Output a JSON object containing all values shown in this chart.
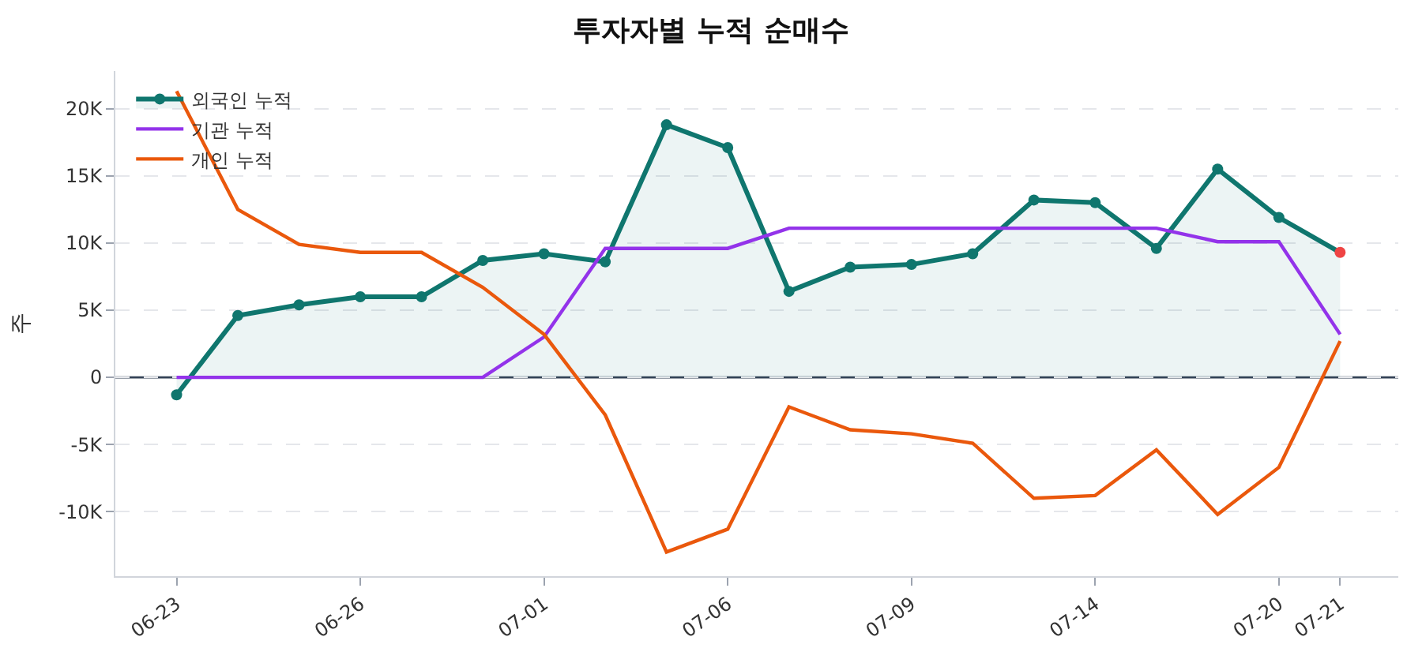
{
  "chart_data": {
    "type": "line",
    "title": "투자자별 누적 순매수",
    "ylabel": "주",
    "categories": [
      "06-23",
      null,
      null,
      "06-26",
      null,
      null,
      "07-01",
      null,
      null,
      "07-06",
      null,
      null,
      "07-09",
      null,
      null,
      "07-14",
      null,
      null,
      "07-20",
      "07-21"
    ],
    "series": [
      {
        "name": "외국인 누적",
        "type": "area",
        "marker": "circle",
        "color": "#0f766e",
        "colors": [
          "#0f766e",
          "#0f766e",
          "#0f766e",
          "#0f766e",
          "#0f766e",
          "#0f766e",
          "#0f766e",
          "#0f766e",
          "#0f766e",
          "#0f766e",
          "#0f766e",
          "#0f766e",
          "#0f766e",
          "#0f766e",
          "#0f766e",
          "#0f766e",
          "#0f766e",
          "#0f766e",
          "#0f766e",
          "#ef4444"
        ],
        "values": [
          -1300,
          4600,
          5400,
          6000,
          6000,
          8700,
          9200,
          8600,
          18800,
          17100,
          6400,
          8200,
          8400,
          9200,
          13200,
          13000,
          9600,
          15500,
          11900,
          9300
        ]
      },
      {
        "name": "기관 누적",
        "color": "#9333ea",
        "values": [
          0,
          0,
          0,
          0,
          0,
          0,
          3000,
          9600,
          9600,
          9600,
          11100,
          11100,
          11100,
          11100,
          11100,
          11100,
          11100,
          10100,
          10100,
          3200
        ]
      },
      {
        "name": "개인 누적",
        "color": "#ea580c",
        "values": [
          21300,
          12500,
          9900,
          9300,
          9300,
          6700,
          3200,
          -2800,
          -13000,
          -11300,
          -2200,
          -3900,
          -4200,
          -4900,
          -9000,
          -8800,
          -5400,
          -10200,
          -6700,
          2700
        ]
      }
    ],
    "ylim": [
      -14800,
      22800
    ],
    "yticks": [
      {
        "value": -10000,
        "label": "-10K"
      },
      {
        "value": -5000,
        "label": "-5K"
      },
      0,
      {
        "value": 5000,
        "label": "5K"
      },
      {
        "value": 10000,
        "label": "10K"
      },
      {
        "value": 15000,
        "label": "15K"
      },
      {
        "value": 20000,
        "label": "20K"
      }
    ],
    "ref_lines": [
      {
        "axis": "y",
        "value": 0,
        "color": "#334155"
      }
    ],
    "grid": "y",
    "legend": "top left"
  }
}
